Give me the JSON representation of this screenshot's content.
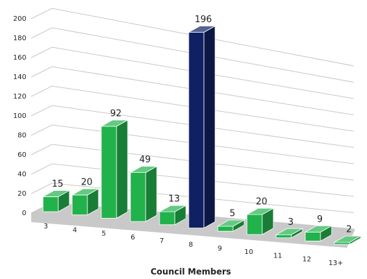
{
  "chart_data": {
    "type": "bar3d",
    "xlabel": "Council Members",
    "categories": [
      "3",
      "4",
      "5",
      "6",
      "7",
      "8",
      "9",
      "10",
      "11",
      "12",
      "13+"
    ],
    "series": [
      {
        "values": [
          15,
          20,
          92,
          49,
          13,
          196,
          5,
          20,
          3,
          9,
          2
        ],
        "colors": [
          "#22b24c",
          "#22b24c",
          "#22b24c",
          "#22b24c",
          "#22b24c",
          "#0f2163",
          "#22b24c",
          "#22b24c",
          "#22b24c",
          "#22b24c",
          "#22b24c"
        ]
      }
    ],
    "ylim": [
      0,
      200
    ],
    "yticks": [
      0,
      20,
      40,
      60,
      80,
      100,
      120,
      140,
      160,
      180,
      200
    ],
    "grid": true
  }
}
